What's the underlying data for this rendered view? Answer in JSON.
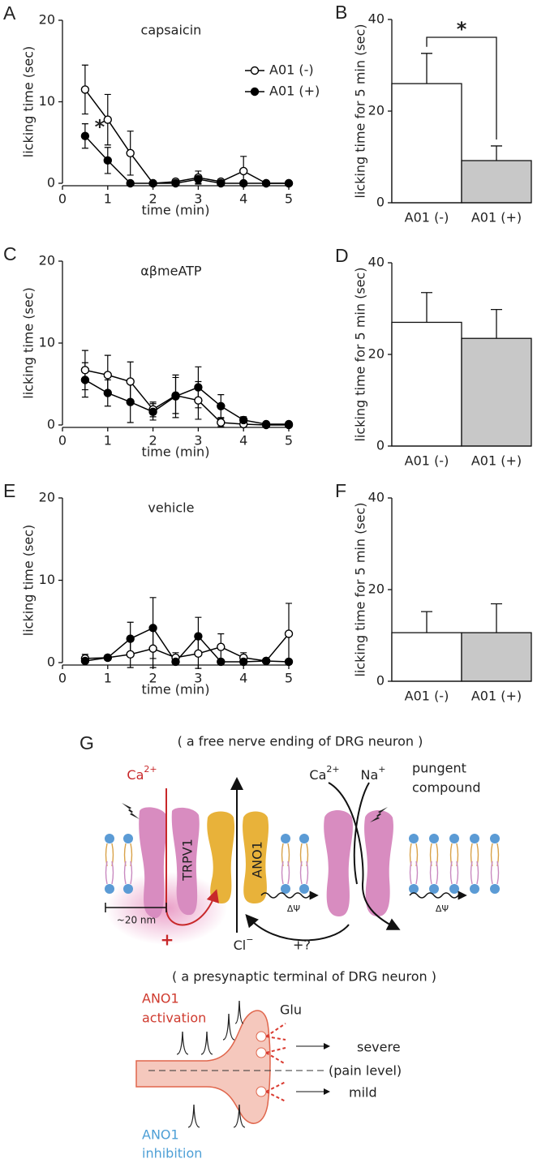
{
  "chart_data": [
    {
      "type": "line",
      "panel": "A",
      "title": "capsaicin",
      "xlabel": "time (min)",
      "ylabel": "licking time (sec)",
      "x": [
        0.5,
        1,
        1.5,
        2,
        2.5,
        3,
        3.5,
        4,
        4.5,
        5
      ],
      "xlim": [
        0,
        5
      ],
      "xticks": [
        0,
        1,
        2,
        3,
        4,
        5
      ],
      "ylim": [
        0,
        20
      ],
      "yticks": [
        0,
        10,
        20
      ],
      "legend": "upper right",
      "annotation": "*",
      "series": [
        {
          "name": "A01 (-)",
          "color": "#000000",
          "marker_fill": "#ffffff",
          "values": [
            11.5,
            7.8,
            3.7,
            0,
            0.2,
            0.7,
            0.2,
            1.5,
            0,
            0
          ],
          "errors": [
            3,
            3.1,
            2.7,
            0,
            0.3,
            0.8,
            0.3,
            1.8,
            0,
            0
          ]
        },
        {
          "name": "A01 (+)",
          "color": "#000000",
          "marker_fill": "#000000",
          "values": [
            5.8,
            2.8,
            0,
            0,
            0,
            0.5,
            0,
            0,
            0,
            0
          ],
          "errors": [
            1.5,
            1.6,
            0,
            0,
            0,
            0.5,
            0,
            0,
            0,
            0
          ]
        }
      ]
    },
    {
      "type": "bar",
      "panel": "B",
      "ylabel": "licking time for 5 min (sec)",
      "categories": [
        "A01 (-)",
        "A01 (+)"
      ],
      "values": [
        26,
        9.2
      ],
      "errors": [
        6.6,
        3.2
      ],
      "colors": [
        "#ffffff",
        "#c8c8c8"
      ],
      "ylim": [
        0,
        40
      ],
      "yticks": [
        0,
        20,
        40
      ],
      "annotation": "*"
    },
    {
      "type": "line",
      "panel": "C",
      "title": "αβmeATP",
      "xlabel": "time (min)",
      "ylabel": "licking time (sec)",
      "x": [
        0.5,
        1,
        1.5,
        2,
        2.5,
        3,
        3.5,
        4,
        4.5,
        5
      ],
      "xlim": [
        0,
        5
      ],
      "xticks": [
        0,
        1,
        2,
        3,
        4,
        5
      ],
      "ylim": [
        0,
        20
      ],
      "yticks": [
        0,
        10,
        20
      ],
      "series": [
        {
          "name": "A01 (-)",
          "color": "#000000",
          "marker_fill": "#ffffff",
          "values": [
            6.7,
            6.1,
            5.3,
            1.9,
            3.6,
            3.0,
            0.3,
            0.1,
            0,
            0
          ],
          "errors": [
            2.4,
            2.4,
            2.4,
            0.9,
            2.2,
            2.3,
            0.5,
            0.3,
            0,
            0
          ]
        },
        {
          "name": "A01 (+)",
          "color": "#000000",
          "marker_fill": "#000000",
          "values": [
            5.5,
            3.9,
            2.8,
            1.6,
            3.5,
            4.6,
            2.3,
            0.6,
            0.1,
            0.1
          ],
          "errors": [
            2.1,
            1.6,
            2.5,
            1.0,
            2.6,
            2.5,
            1.4,
            0.4,
            0.1,
            0.1
          ]
        }
      ]
    },
    {
      "type": "bar",
      "panel": "D",
      "ylabel": "licking time for 5 min (sec)",
      "categories": [
        "A01 (-)",
        "A01 (+)"
      ],
      "values": [
        27,
        23.5
      ],
      "errors": [
        6.5,
        6.3
      ],
      "colors": [
        "#ffffff",
        "#c8c8c8"
      ],
      "ylim": [
        0,
        40
      ],
      "yticks": [
        0,
        20,
        40
      ]
    },
    {
      "type": "line",
      "panel": "E",
      "title": "vehicle",
      "xlabel": "time (min)",
      "ylabel": "licking time (sec)",
      "x": [
        0.5,
        1,
        1.5,
        2,
        2.5,
        3,
        3.5,
        4,
        4.5,
        5
      ],
      "xlim": [
        0,
        5
      ],
      "xticks": [
        0,
        1,
        2,
        3,
        4,
        5
      ],
      "ylim": [
        0,
        20
      ],
      "yticks": [
        0,
        10,
        20
      ],
      "series": [
        {
          "name": "A01 (-)",
          "color": "#000000",
          "marker_fill": "#ffffff",
          "values": [
            0.5,
            0.6,
            1.0,
            1.7,
            0.6,
            1.1,
            1.9,
            0.6,
            0.2,
            3.5
          ],
          "errors": [
            0.5,
            0.3,
            1.6,
            2.3,
            0.6,
            1.8,
            1.6,
            0.6,
            0.2,
            3.7
          ]
        },
        {
          "name": "A01 (+)",
          "color": "#000000",
          "marker_fill": "#000000",
          "values": [
            0.2,
            0.6,
            2.9,
            4.2,
            0.1,
            3.2,
            0.1,
            0.1,
            0.2,
            0.1
          ],
          "errors": [
            0.2,
            0.3,
            2.0,
            3.7,
            0.1,
            2.3,
            0.1,
            0.1,
            0.2,
            0.1
          ]
        }
      ]
    },
    {
      "type": "bar",
      "panel": "F",
      "ylabel": "licking time for 5 min (sec)",
      "categories": [
        "A01 (-)",
        "A01 (+)"
      ],
      "values": [
        10.6,
        10.6
      ],
      "errors": [
        4.6,
        6.3
      ],
      "colors": [
        "#ffffff",
        "#c8c8c8"
      ],
      "ylim": [
        0,
        40
      ],
      "yticks": [
        0,
        20,
        40
      ]
    }
  ],
  "diagram": {
    "panel": "G",
    "caption_top": "( a free nerve ending of DRG neuron )",
    "calcium_left": {
      "base": "Ca",
      "sup": "2+"
    },
    "calcium_right": {
      "base": "Ca",
      "sup": "2+"
    },
    "sodium": {
      "base": "Na",
      "sup": "+"
    },
    "pungent": [
      "pungent",
      "compound"
    ],
    "trpv1": "TRPV1",
    "ano1": "ANO1",
    "scale": "~20 nm",
    "potential": [
      "ΔΨ",
      "ΔΨ"
    ],
    "plus": "+",
    "chloride": {
      "base": "Cl",
      "sup": "−"
    },
    "plus_question": "+?",
    "caption_bottom": "( a presynaptic terminal of DRG neuron )",
    "activation": [
      "ANO1",
      "activation"
    ],
    "glu": "Glu",
    "severe": "severe",
    "pain_level": "(pain level)",
    "mild": "mild",
    "inhibition": [
      "ANO1",
      "inhibition"
    ]
  }
}
